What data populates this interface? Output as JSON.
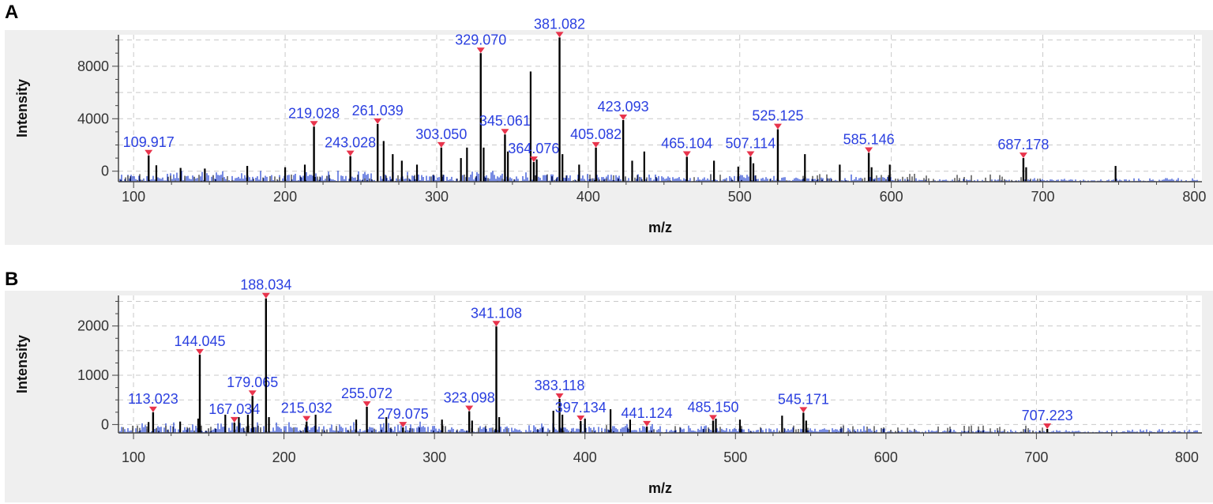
{
  "panel_letters": [
    "A",
    "B"
  ],
  "colors": {
    "peak_line": "#000000",
    "noise": "#1f3fd0",
    "label": "#2a3fe0",
    "marker": "#e8344c",
    "plot_bg": "#ffffff",
    "panel_bg": "#efefef",
    "grid": "#c9c9c9"
  },
  "chart_data": [
    {
      "type": "bar",
      "panel": "A",
      "xlabel": "m/z",
      "ylabel": "Intensity",
      "xlim": [
        90,
        805
      ],
      "ylim": [
        -800,
        10400
      ],
      "xticks": [
        100,
        200,
        300,
        400,
        500,
        600,
        700,
        800
      ],
      "yticks": [
        0,
        4000,
        8000
      ],
      "grid": true,
      "labeled_peaks": [
        {
          "x": 109.917,
          "y": 1200,
          "label": "109.917"
        },
        {
          "x": 219.028,
          "y": 3400,
          "label": "219.028"
        },
        {
          "x": 243.028,
          "y": 1150,
          "label": "243.028"
        },
        {
          "x": 261.039,
          "y": 3600,
          "label": "261.039"
        },
        {
          "x": 303.05,
          "y": 1800,
          "label": "303.050"
        },
        {
          "x": 329.07,
          "y": 9000,
          "label": "329.070"
        },
        {
          "x": 345.061,
          "y": 2800,
          "label": "345.061"
        },
        {
          "x": 364.076,
          "y": 700,
          "label": "364.076"
        },
        {
          "x": 381.082,
          "y": 10200,
          "label": "381.082"
        },
        {
          "x": 405.082,
          "y": 1800,
          "label": "405.082"
        },
        {
          "x": 423.093,
          "y": 3900,
          "label": "423.093"
        },
        {
          "x": 465.104,
          "y": 1100,
          "label": "465.104"
        },
        {
          "x": 507.114,
          "y": 1100,
          "label": "507.114"
        },
        {
          "x": 525.125,
          "y": 3200,
          "label": "525.125"
        },
        {
          "x": 585.146,
          "y": 1400,
          "label": "585.146"
        },
        {
          "x": 687.178,
          "y": 1000,
          "label": "687.178"
        }
      ],
      "other_peaks": [
        {
          "x": 115,
          "y": 450
        },
        {
          "x": 131,
          "y": 250
        },
        {
          "x": 147,
          "y": 200
        },
        {
          "x": 175,
          "y": 400
        },
        {
          "x": 200,
          "y": 300
        },
        {
          "x": 213,
          "y": 500
        },
        {
          "x": 265,
          "y": 2300
        },
        {
          "x": 271,
          "y": 1300
        },
        {
          "x": 277,
          "y": 800
        },
        {
          "x": 287,
          "y": 500
        },
        {
          "x": 316,
          "y": 1000
        },
        {
          "x": 320,
          "y": 1800
        },
        {
          "x": 331,
          "y": 1800
        },
        {
          "x": 347,
          "y": 1500
        },
        {
          "x": 362,
          "y": 7600
        },
        {
          "x": 366,
          "y": 900
        },
        {
          "x": 383,
          "y": 1300
        },
        {
          "x": 394,
          "y": 500
        },
        {
          "x": 429,
          "y": 800
        },
        {
          "x": 437,
          "y": 1500
        },
        {
          "x": 483,
          "y": 800
        },
        {
          "x": 499,
          "y": 350
        },
        {
          "x": 509,
          "y": 600
        },
        {
          "x": 543,
          "y": 1300
        },
        {
          "x": 566,
          "y": 500
        },
        {
          "x": 587,
          "y": 300
        },
        {
          "x": 599,
          "y": 500
        },
        {
          "x": 689,
          "y": 300
        },
        {
          "x": 748,
          "y": 400
        }
      ]
    },
    {
      "type": "bar",
      "panel": "B",
      "xlabel": "m/z",
      "ylabel": "Intensity",
      "xlim": [
        90,
        810
      ],
      "ylim": [
        -170,
        2620
      ],
      "xticks": [
        100,
        200,
        300,
        400,
        500,
        600,
        700,
        800
      ],
      "yticks": [
        0,
        1000,
        2000
      ],
      "grid": true,
      "labeled_peaks": [
        {
          "x": 113.023,
          "y": 250,
          "label": "113.023"
        },
        {
          "x": 144.045,
          "y": 1420,
          "label": "144.045"
        },
        {
          "x": 167.034,
          "y": 40,
          "label": "167.034"
        },
        {
          "x": 179.065,
          "y": 580,
          "label": "179.065"
        },
        {
          "x": 188.034,
          "y": 2560,
          "label": "188.034"
        },
        {
          "x": 215.032,
          "y": 60,
          "label": "215.032"
        },
        {
          "x": 255.072,
          "y": 360,
          "label": "255.072"
        },
        {
          "x": 279.075,
          "y": -60,
          "label": "279.075"
        },
        {
          "x": 323.098,
          "y": 270,
          "label": "323.098"
        },
        {
          "x": 341.108,
          "y": 1990,
          "label": "341.108"
        },
        {
          "x": 383.118,
          "y": 520,
          "label": "383.118"
        },
        {
          "x": 397.134,
          "y": 70,
          "label": "397.134"
        },
        {
          "x": 441.124,
          "y": -40,
          "label": "441.124"
        },
        {
          "x": 485.15,
          "y": 80,
          "label": "485.150"
        },
        {
          "x": 545.171,
          "y": 240,
          "label": "545.171"
        },
        {
          "x": 707.223,
          "y": -90,
          "label": "707.223"
        }
      ],
      "other_peaks": [
        {
          "x": 110,
          "y": 50
        },
        {
          "x": 131,
          "y": 60
        },
        {
          "x": 143,
          "y": 120
        },
        {
          "x": 161,
          "y": 200
        },
        {
          "x": 170,
          "y": 150
        },
        {
          "x": 176,
          "y": 200
        },
        {
          "x": 190,
          "y": 150
        },
        {
          "x": 221,
          "y": 200
        },
        {
          "x": 248,
          "y": 100
        },
        {
          "x": 268,
          "y": 150
        },
        {
          "x": 305,
          "y": 100
        },
        {
          "x": 325,
          "y": 80
        },
        {
          "x": 343,
          "y": 150
        },
        {
          "x": 379,
          "y": 280
        },
        {
          "x": 385,
          "y": 200
        },
        {
          "x": 400,
          "y": 120
        },
        {
          "x": 417,
          "y": 310
        },
        {
          "x": 430,
          "y": 100
        },
        {
          "x": 487,
          "y": 120
        },
        {
          "x": 503,
          "y": 100
        },
        {
          "x": 531,
          "y": 180
        },
        {
          "x": 547,
          "y": 80
        }
      ]
    }
  ]
}
